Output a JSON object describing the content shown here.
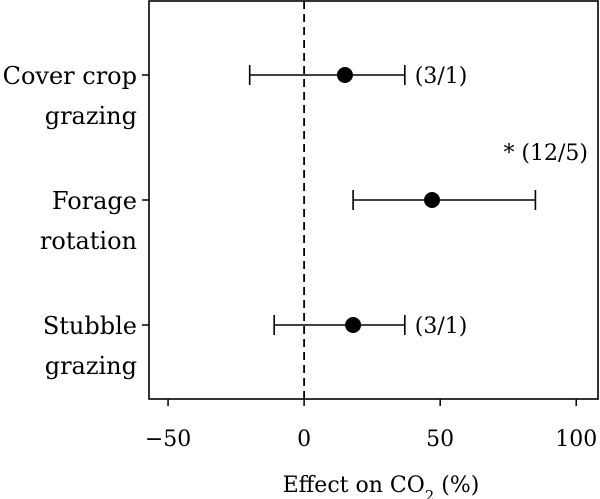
{
  "chart_data": {
    "type": "scatter",
    "title": "",
    "xlabel": {
      "main": "Effect on CO",
      "sub": "2",
      "suffix": " (%)"
    },
    "ylabel": "",
    "xlim": [
      -57,
      108
    ],
    "xticks": [
      -50,
      0,
      50,
      100
    ],
    "xtick_labels": [
      "−50",
      "0",
      "50",
      "100"
    ],
    "reference_line": {
      "x": 0,
      "style": "dashed"
    },
    "marker_color": "#000000",
    "grid": false,
    "categories": [
      {
        "label_lines": [
          "Cover crop",
          "grazing"
        ],
        "estimate": 15,
        "ci_low": -20,
        "ci_high": 37,
        "annotation": "(3/1)",
        "significant": false
      },
      {
        "label_lines": [
          "Forage",
          "rotation"
        ],
        "estimate": 47,
        "ci_low": 18,
        "ci_high": 85,
        "annotation": "(12/5)",
        "significant": true,
        "significance_marker": "*"
      },
      {
        "label_lines": [
          "Stubble",
          "grazing"
        ],
        "estimate": 18,
        "ci_low": -11,
        "ci_high": 37,
        "annotation": "(3/1)",
        "significant": false
      }
    ]
  }
}
